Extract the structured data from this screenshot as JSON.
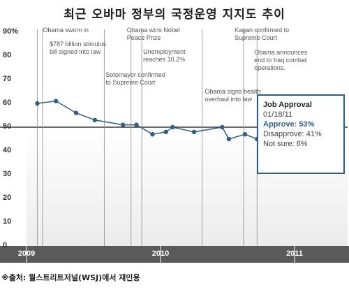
{
  "chart_data": {
    "type": "line",
    "title": "최근 오바마 정부의 국정운영 지지도 추이",
    "y_tick_labels": [
      "90%",
      "80",
      "70",
      "60",
      "50",
      "40",
      "30",
      "20",
      "10",
      "0"
    ],
    "y_ticks": [
      90,
      80,
      70,
      60,
      50,
      40,
      30,
      20,
      10,
      0
    ],
    "ylim": [
      0,
      90
    ],
    "x_tick_labels": [
      "2009",
      "2010",
      "2011"
    ],
    "x_ticks": [
      2009.0,
      2010.0,
      2011.0
    ],
    "xlim": [
      2009.0,
      2011.25
    ],
    "reference_line": 50,
    "grid": false,
    "series": [
      {
        "name": "Job Approval",
        "color": "#2f5f86",
        "x": [
          2009.08,
          2009.22,
          2009.37,
          2009.51,
          2009.72,
          2009.82,
          2009.94,
          2010.04,
          2010.09,
          2010.25,
          2010.46,
          2010.51,
          2010.63,
          2010.72,
          2010.85,
          2010.89,
          2010.94,
          2010.98,
          2011.03
        ],
        "y": [
          60,
          61,
          56,
          53,
          51,
          51,
          47,
          48,
          50,
          48,
          50,
          45,
          47,
          45,
          46,
          47,
          45,
          50,
          53
        ]
      }
    ],
    "annotations": [
      {
        "text": "Obama sworn in",
        "x": 2009.08
      },
      {
        "text": "$787 billion stimulus\nbill signed into law",
        "x": 2009.12
      },
      {
        "text": "Sotomayor confirmed\nto Supreme Court",
        "x": 2009.58
      },
      {
        "text": "Obama wins Nobel\nPeace Prize",
        "x": 2009.78
      },
      {
        "text": "Unemployment\nreaches 10.2%",
        "x": 2009.86
      },
      {
        "text": "Obama signs health\noverhaul into law",
        "x": 2010.31
      },
      {
        "text": "Kagan confirmed to\nSupreme Court",
        "x": 2010.62
      },
      {
        "text": "Obama announces\nend to Iraq combat\noperations.",
        "x": 2010.72
      }
    ],
    "tooltip": {
      "title": "Job Approval",
      "date": "01/18/11",
      "approve": "Approve: 53%",
      "disapprove": "Disapprove: 41%",
      "not_sure": "Not sure: 6%"
    },
    "source": "※출처: 월스트리트저널(WSJ)에서 재인용"
  },
  "colors": {
    "line": "#2f5f86",
    "lower_band": "#ececec",
    "axis_bar": "#5a5a5a",
    "guide_line": "#8a8a8a"
  }
}
